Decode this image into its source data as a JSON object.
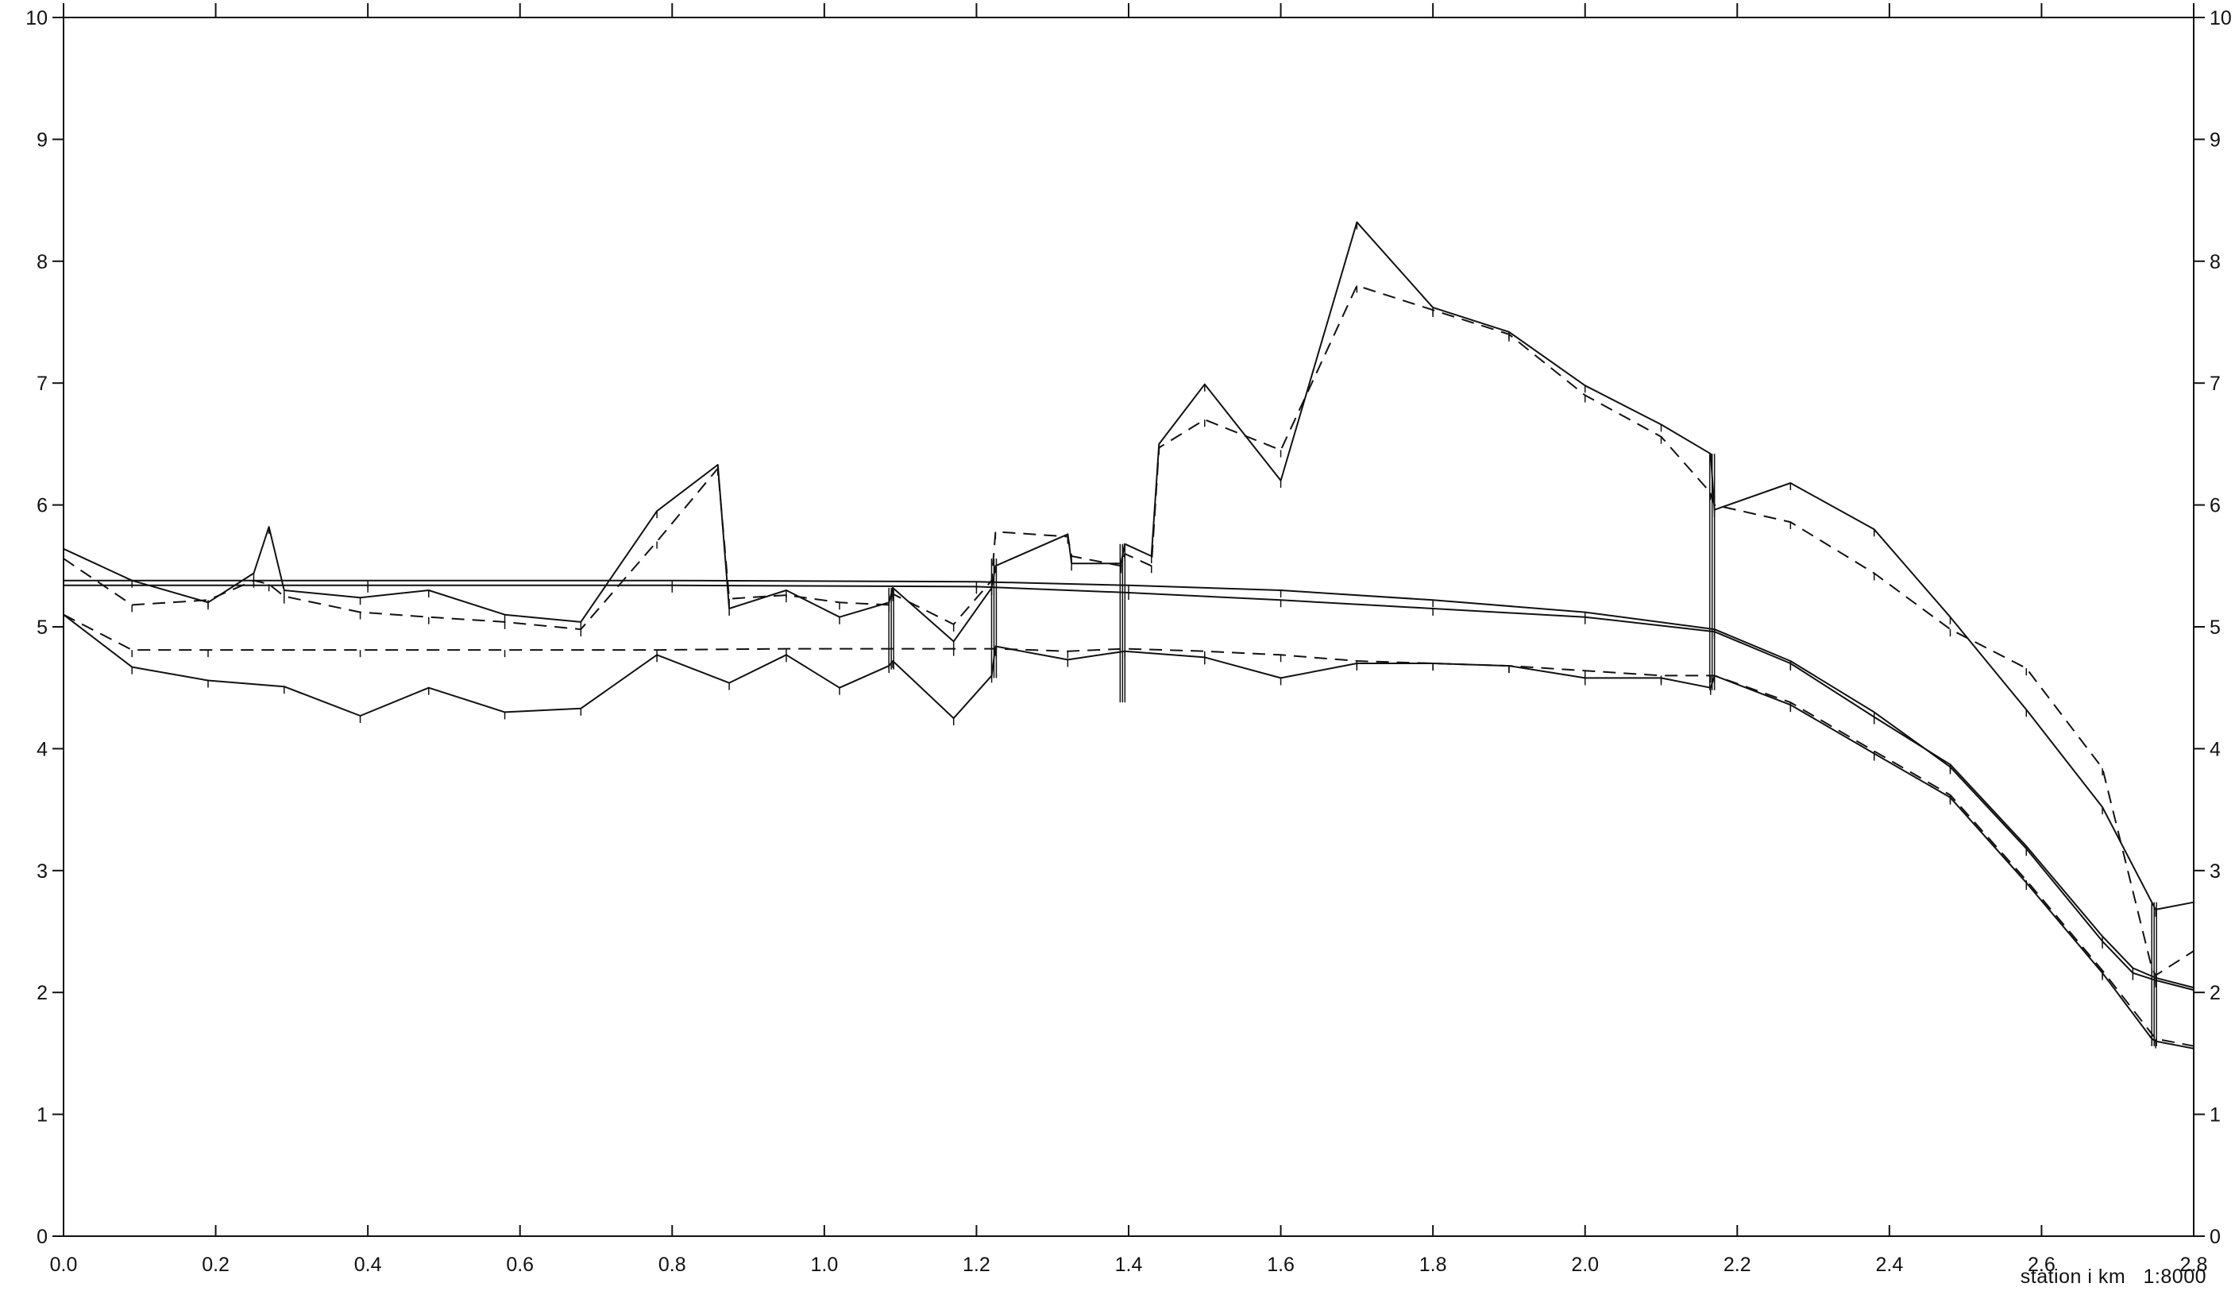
{
  "chart_data": {
    "type": "line",
    "xlabel": "station i km   1:8000",
    "xlim": [
      0,
      2.8
    ],
    "ylim": [
      0,
      10
    ],
    "xticks": [
      0,
      0.2,
      0.4,
      0.6,
      0.8,
      1.0,
      1.2,
      1.4,
      1.6,
      1.8,
      2.0,
      2.2,
      2.4,
      2.6,
      2.8
    ],
    "xtick_labels": [
      "0.0",
      "0.2",
      "0.4",
      "0.6",
      "0.8",
      "1.0",
      "1.2",
      "1.4",
      "1.6",
      "1.8",
      "2.0",
      "2.2",
      "2.4",
      "2.6",
      "2.8"
    ],
    "yticks": [
      0,
      1,
      2,
      3,
      4,
      5,
      6,
      7,
      8,
      9,
      10
    ],
    "ytick_labels": [
      "0",
      "1",
      "2",
      "3",
      "4",
      "5",
      "6",
      "7",
      "8",
      "9",
      "10"
    ],
    "grid": false,
    "series": [
      {
        "style": "solid",
        "x": [
          0.0,
          0.09,
          0.19,
          0.25,
          0.27,
          0.29,
          0.39,
          0.48,
          0.58,
          0.68,
          0.78,
          0.86,
          0.875,
          0.95,
          1.02,
          1.085,
          1.09,
          1.17,
          1.22,
          1.225,
          1.32,
          1.325,
          1.39,
          1.395,
          1.43,
          1.44,
          1.5,
          1.6,
          1.7,
          1.8,
          1.9,
          2.0,
          2.1,
          2.165,
          2.17,
          2.27,
          2.38,
          2.48,
          2.58,
          2.68,
          2.745,
          2.75,
          2.8
        ],
        "y": [
          5.64,
          5.38,
          5.2,
          5.44,
          5.82,
          5.3,
          5.24,
          5.3,
          5.1,
          5.04,
          5.95,
          6.33,
          5.15,
          5.3,
          5.08,
          5.2,
          5.32,
          4.88,
          5.32,
          5.5,
          5.76,
          5.52,
          5.52,
          5.68,
          5.58,
          6.5,
          6.99,
          6.2,
          8.32,
          7.62,
          7.42,
          6.98,
          6.66,
          6.42,
          5.96,
          6.18,
          5.8,
          5.08,
          4.32,
          3.52,
          2.74,
          2.68,
          2.74
        ]
      },
      {
        "style": "dashed",
        "x": [
          0.0,
          0.09,
          0.19,
          0.25,
          0.27,
          0.29,
          0.39,
          0.48,
          0.58,
          0.68,
          0.78,
          0.86,
          0.875,
          0.95,
          1.02,
          1.085,
          1.09,
          1.17,
          1.22,
          1.225,
          1.32,
          1.325,
          1.39,
          1.395,
          1.43,
          1.44,
          1.5,
          1.6,
          1.7,
          1.8,
          1.9,
          2.0,
          2.1,
          2.165,
          2.17,
          2.27,
          2.38,
          2.48,
          2.58,
          2.68,
          2.745,
          2.75,
          2.8
        ],
        "y": [
          5.56,
          5.18,
          5.22,
          5.38,
          5.35,
          5.25,
          5.12,
          5.08,
          5.04,
          4.98,
          5.7,
          6.3,
          5.23,
          5.26,
          5.2,
          5.18,
          5.27,
          5.02,
          5.38,
          5.78,
          5.74,
          5.58,
          5.5,
          5.6,
          5.5,
          6.47,
          6.7,
          6.45,
          7.8,
          7.6,
          7.4,
          6.9,
          6.56,
          6.1,
          6.0,
          5.86,
          5.44,
          4.98,
          4.66,
          3.84,
          2.2,
          2.14,
          2.34
        ]
      },
      {
        "style": "solid",
        "x": [
          0.0,
          0.09,
          0.19,
          0.29,
          0.39,
          0.48,
          0.58,
          0.68,
          0.78,
          0.875,
          0.95,
          1.02,
          1.085,
          1.09,
          1.17,
          1.22,
          1.225,
          1.32,
          1.395,
          1.5,
          1.6,
          1.7,
          1.8,
          1.9,
          2.0,
          2.1,
          2.165,
          2.17,
          2.27,
          2.38,
          2.48,
          2.58,
          2.68,
          2.745,
          2.75,
          2.8
        ],
        "y": [
          5.1,
          4.67,
          4.56,
          4.51,
          4.27,
          4.5,
          4.3,
          4.33,
          4.77,
          4.54,
          4.77,
          4.5,
          4.68,
          4.72,
          4.25,
          4.6,
          4.84,
          4.73,
          4.8,
          4.75,
          4.58,
          4.7,
          4.7,
          4.68,
          4.58,
          4.58,
          4.5,
          4.6,
          4.36,
          3.96,
          3.6,
          2.9,
          2.16,
          1.62,
          1.6,
          1.54
        ]
      },
      {
        "style": "dashed",
        "x": [
          0.0,
          0.09,
          0.19,
          0.39,
          0.58,
          0.78,
          0.95,
          1.17,
          1.225,
          1.32,
          1.395,
          1.5,
          1.6,
          1.7,
          1.8,
          1.9,
          2.0,
          2.1,
          2.165,
          2.17,
          2.27,
          2.38,
          2.48,
          2.58,
          2.68,
          2.745,
          2.75,
          2.8
        ],
        "y": [
          5.1,
          4.81,
          4.81,
          4.81,
          4.81,
          4.81,
          4.82,
          4.82,
          4.82,
          4.8,
          4.82,
          4.8,
          4.77,
          4.72,
          4.7,
          4.68,
          4.64,
          4.6,
          4.6,
          4.6,
          4.38,
          3.98,
          3.62,
          2.92,
          2.18,
          1.66,
          1.62,
          1.56
        ]
      },
      {
        "style": "solid",
        "x": [
          0.0,
          0.4,
          0.8,
          1.2,
          1.4,
          1.6,
          1.8,
          2.0,
          2.17,
          2.27,
          2.38,
          2.48,
          2.58,
          2.68,
          2.72,
          2.75,
          2.8
        ],
        "y": [
          5.38,
          5.38,
          5.38,
          5.37,
          5.34,
          5.3,
          5.22,
          5.12,
          4.98,
          4.72,
          4.3,
          3.85,
          3.18,
          2.42,
          2.16,
          2.1,
          2.02
        ]
      },
      {
        "style": "solid",
        "x": [
          0.0,
          0.4,
          0.8,
          1.2,
          1.4,
          1.6,
          1.8,
          2.0,
          2.17,
          2.27,
          2.38,
          2.48,
          2.58,
          2.68,
          2.72,
          2.75,
          2.8
        ],
        "y": [
          5.34,
          5.34,
          5.34,
          5.33,
          5.28,
          5.22,
          5.15,
          5.08,
          4.96,
          4.7,
          4.26,
          3.87,
          3.2,
          2.46,
          2.2,
          2.12,
          2.04
        ]
      }
    ],
    "drops": [
      {
        "x": 1.088,
        "y": [
          4.65,
          5.32
        ]
      },
      {
        "x": 1.223,
        "y": [
          4.58,
          5.56
        ]
      },
      {
        "x": 1.392,
        "y": [
          4.38,
          5.68
        ]
      },
      {
        "x": 2.167,
        "y": [
          4.48,
          6.42
        ]
      },
      {
        "x": 2.748,
        "y": [
          1.56,
          2.74
        ]
      }
    ]
  }
}
